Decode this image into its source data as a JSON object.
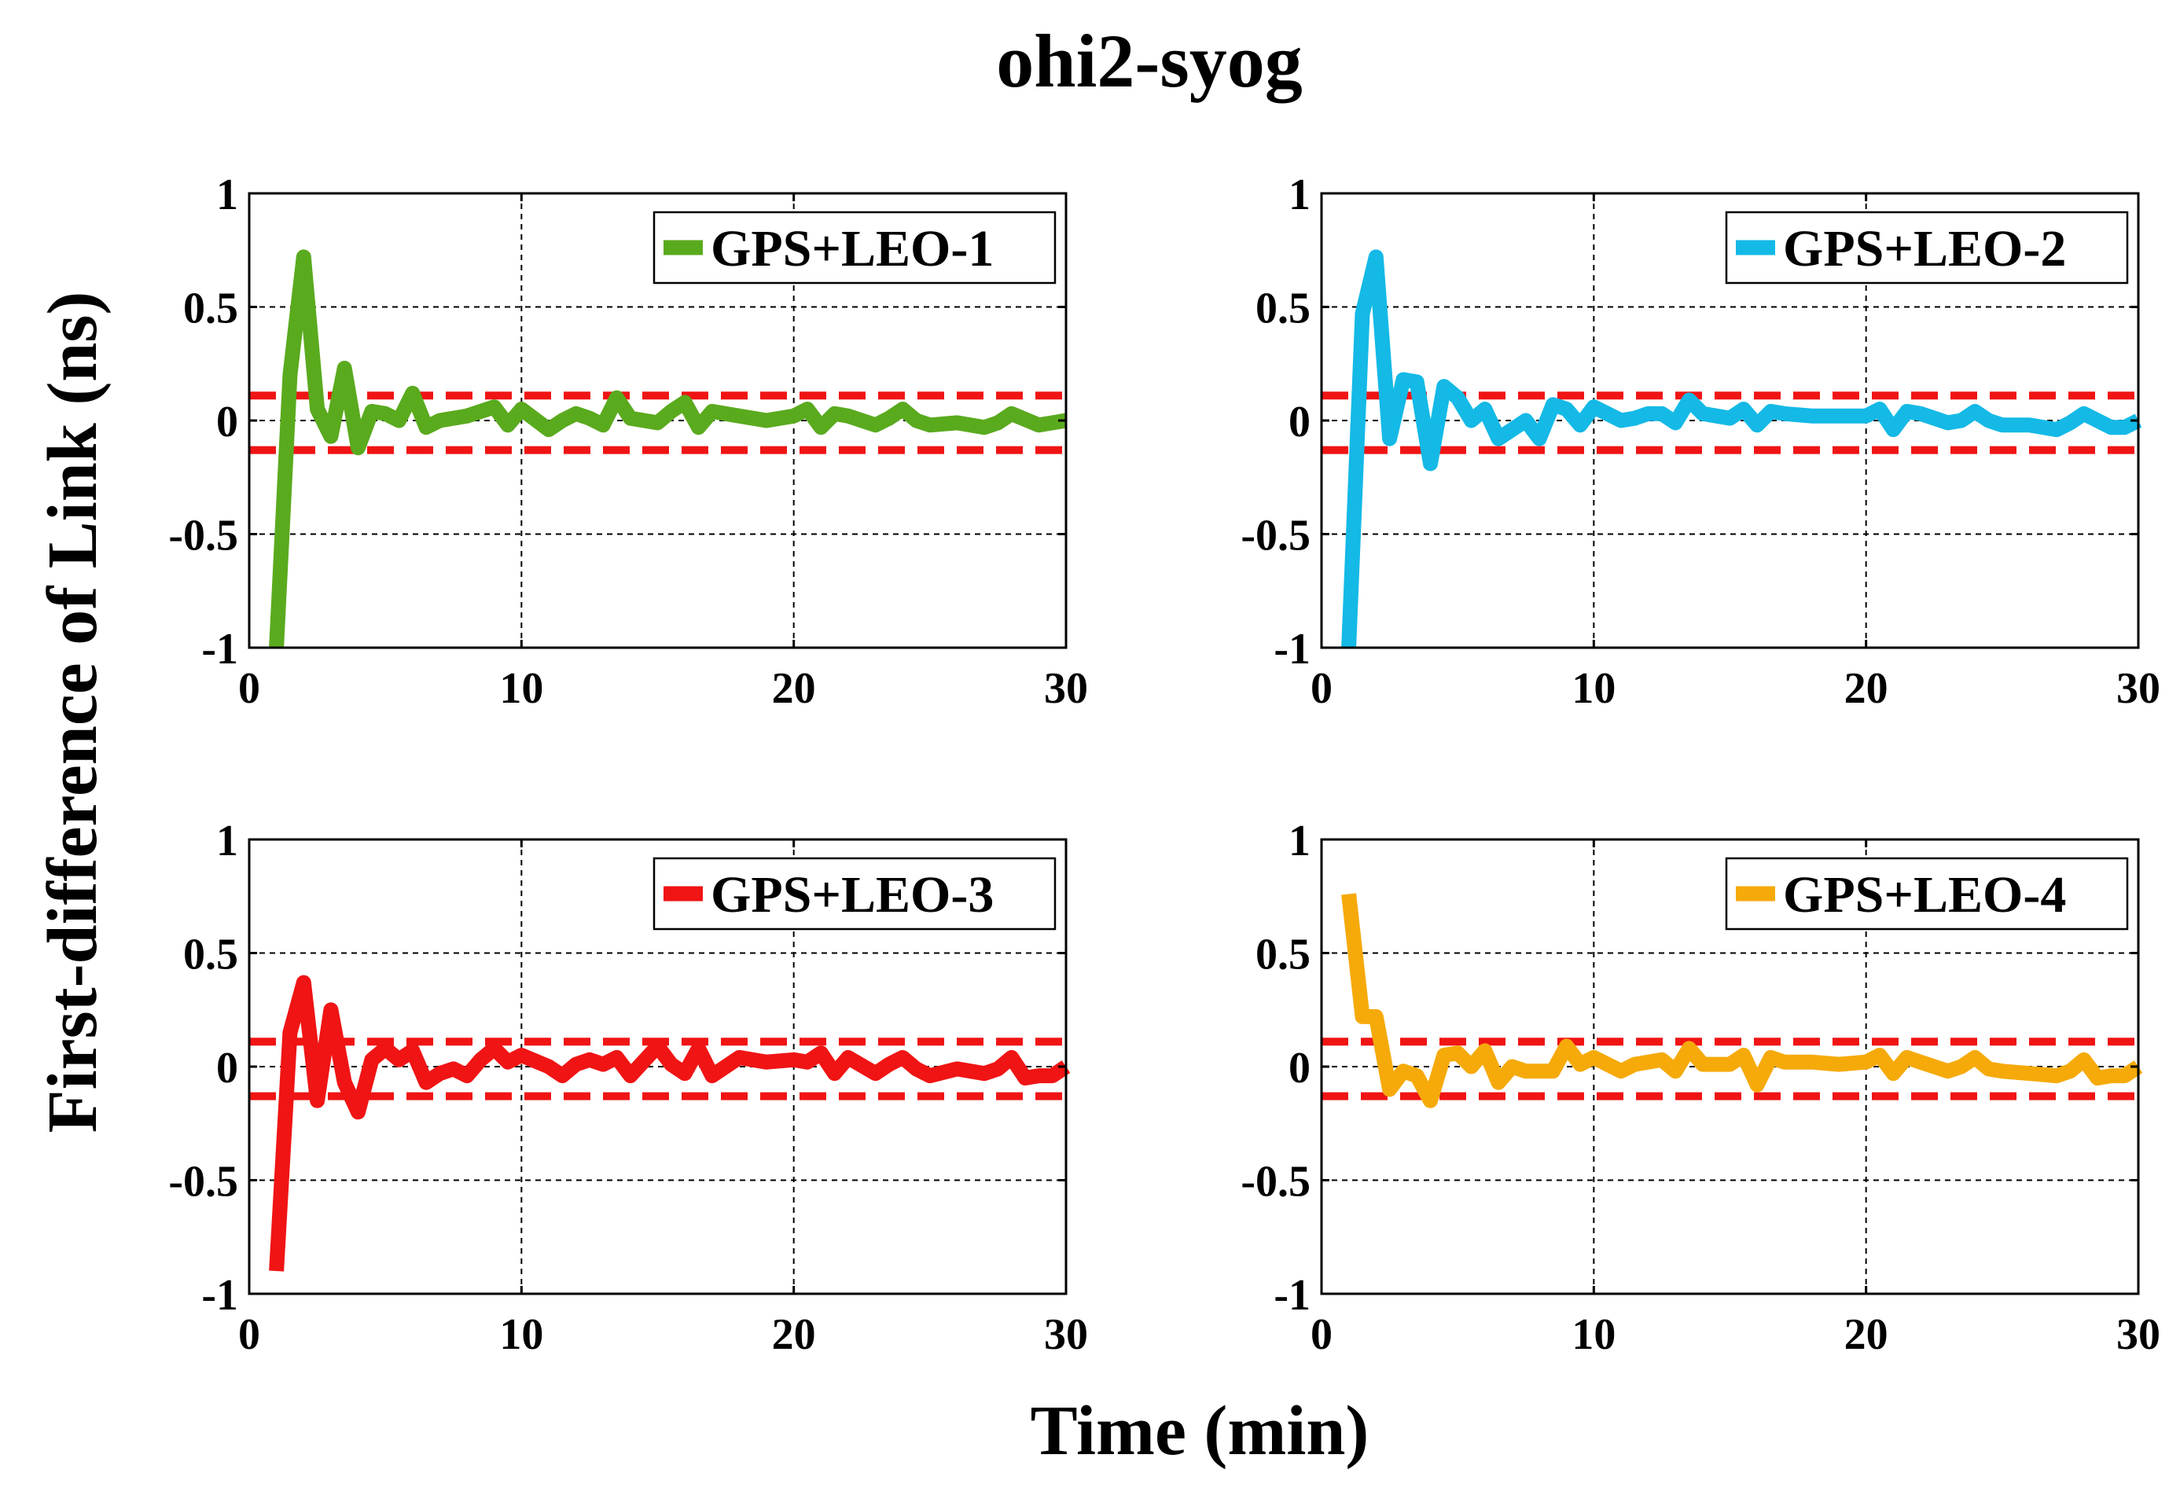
{
  "figure": {
    "title": "ohi2-syog",
    "xlabel": "Time (min)",
    "ylabel": "First-difference of Link (ns)"
  },
  "chart_data": [
    {
      "type": "line",
      "title": "",
      "xlabel": "Time (min)",
      "ylabel": "First-difference of Link (ns)",
      "xlim": [
        0,
        30
      ],
      "ylim": [
        -1,
        1
      ],
      "xticks": [
        "0",
        "10",
        "20",
        "30"
      ],
      "yticks": [
        "-1",
        "-0.5",
        "0",
        "0.5",
        "1"
      ],
      "grid": true,
      "legend_position": "top-right",
      "series": [
        {
          "name": "GPS+LEO-1",
          "color": "#5aaa1e",
          "x": [
            1.0,
            1.5,
            2.0,
            2.5,
            3.0,
            3.5,
            4.0,
            4.5,
            5.0,
            5.5,
            6.0,
            6.5,
            7.0,
            8.0,
            9.0,
            9.5,
            10.0,
            11.0,
            11.5,
            12.0,
            12.5,
            13.0,
            13.5,
            14.0,
            15.0,
            15.5,
            16.0,
            16.5,
            17.0,
            18.0,
            19.0,
            20.0,
            20.5,
            21.0,
            21.5,
            22.0,
            23.0,
            23.5,
            24.0,
            24.5,
            25.0,
            26.0,
            27.0,
            27.5,
            28.0,
            29.0,
            29.5,
            30.0
          ],
          "values": [
            -1.0,
            0.2,
            0.72,
            0.05,
            -0.07,
            0.23,
            -0.12,
            0.04,
            0.03,
            0.0,
            0.12,
            -0.03,
            0.0,
            0.02,
            0.06,
            -0.02,
            0.05,
            -0.04,
            0.0,
            0.03,
            0.01,
            -0.02,
            0.1,
            0.01,
            -0.01,
            0.04,
            0.08,
            -0.03,
            0.04,
            0.02,
            0.0,
            0.02,
            0.05,
            -0.03,
            0.03,
            0.02,
            -0.02,
            0.01,
            0.05,
            0.0,
            -0.02,
            -0.01,
            -0.03,
            -0.01,
            0.03,
            -0.02,
            -0.01,
            0.0
          ]
        }
      ],
      "reference_lines": [
        0.11,
        -0.13
      ]
    },
    {
      "type": "line",
      "title": "",
      "xlabel": "Time (min)",
      "ylabel": "First-difference of Link (ns)",
      "xlim": [
        0,
        30
      ],
      "ylim": [
        -1,
        1
      ],
      "xticks": [
        "0",
        "10",
        "20",
        "30"
      ],
      "yticks": [
        "-1",
        "-0.5",
        "0",
        "0.5",
        "1"
      ],
      "grid": true,
      "legend_position": "top-right",
      "series": [
        {
          "name": "GPS+LEO-2",
          "color": "#14b9e6",
          "x": [
            1.0,
            1.5,
            2.0,
            2.5,
            3.0,
            3.5,
            4.0,
            4.5,
            5.0,
            5.5,
            6.0,
            6.5,
            7.0,
            7.5,
            8.0,
            8.5,
            9.0,
            9.5,
            10.0,
            11.0,
            11.5,
            12.0,
            12.5,
            13.0,
            13.5,
            14.0,
            15.0,
            15.5,
            16.0,
            16.5,
            17.0,
            18.0,
            19.0,
            20.0,
            20.5,
            21.0,
            21.5,
            22.0,
            23.0,
            23.5,
            24.0,
            24.5,
            25.0,
            26.0,
            27.0,
            27.5,
            28.0,
            29.0,
            29.5,
            30.0
          ],
          "values": [
            -1.0,
            0.47,
            0.72,
            -0.08,
            0.18,
            0.17,
            -0.19,
            0.15,
            0.1,
            0.0,
            0.05,
            -0.08,
            -0.04,
            0.0,
            -0.08,
            0.07,
            0.05,
            -0.02,
            0.06,
            0.0,
            0.01,
            0.03,
            0.03,
            -0.01,
            0.09,
            0.03,
            0.01,
            0.05,
            -0.02,
            0.04,
            0.03,
            0.02,
            0.02,
            0.02,
            0.05,
            -0.04,
            0.04,
            0.03,
            -0.01,
            0.0,
            0.04,
            0.0,
            -0.02,
            -0.02,
            -0.04,
            -0.01,
            0.03,
            -0.03,
            -0.03,
            0.0
          ]
        }
      ],
      "reference_lines": [
        0.11,
        -0.13
      ]
    },
    {
      "type": "line",
      "title": "",
      "xlabel": "Time (min)",
      "ylabel": "First-difference of Link (ns)",
      "xlim": [
        0,
        30
      ],
      "ylim": [
        -1,
        1
      ],
      "xticks": [
        "0",
        "10",
        "20",
        "30"
      ],
      "yticks": [
        "-1",
        "-0.5",
        "0",
        "0.5",
        "1"
      ],
      "grid": true,
      "legend_position": "top-right",
      "series": [
        {
          "name": "GPS+LEO-3",
          "color": "#f01414",
          "x": [
            1.0,
            1.5,
            2.0,
            2.5,
            3.0,
            3.5,
            4.0,
            4.5,
            5.0,
            5.5,
            6.0,
            6.5,
            7.0,
            7.5,
            8.0,
            8.5,
            9.0,
            9.5,
            10.0,
            11.0,
            11.5,
            12.0,
            12.5,
            13.0,
            13.5,
            14.0,
            15.0,
            15.5,
            16.0,
            16.5,
            17.0,
            18.0,
            19.0,
            20.0,
            20.5,
            21.0,
            21.5,
            22.0,
            23.0,
            23.5,
            24.0,
            24.5,
            25.0,
            26.0,
            27.0,
            27.5,
            28.0,
            28.5,
            29.0,
            29.5,
            30.0
          ],
          "values": [
            -0.9,
            0.15,
            0.37,
            -0.15,
            0.25,
            -0.07,
            -0.2,
            0.03,
            0.08,
            0.03,
            0.07,
            -0.07,
            -0.03,
            -0.01,
            -0.04,
            0.03,
            0.08,
            0.02,
            0.05,
            0.0,
            -0.04,
            0.01,
            0.03,
            0.01,
            0.04,
            -0.04,
            0.09,
            0.01,
            -0.03,
            0.08,
            -0.04,
            0.04,
            0.02,
            0.03,
            0.02,
            0.06,
            -0.03,
            0.04,
            -0.03,
            0.01,
            0.04,
            -0.01,
            -0.04,
            -0.01,
            -0.03,
            -0.01,
            0.04,
            -0.05,
            -0.04,
            -0.04,
            0.0
          ]
        }
      ],
      "reference_lines": [
        0.11,
        -0.13
      ]
    },
    {
      "type": "line",
      "title": "",
      "xlabel": "Time (min)",
      "ylabel": "First-difference of Link (ns)",
      "xlim": [
        0,
        30
      ],
      "ylim": [
        -1,
        1
      ],
      "xticks": [
        "0",
        "10",
        "20",
        "30"
      ],
      "yticks": [
        "-1",
        "-0.5",
        "0",
        "0.5",
        "1"
      ],
      "grid": true,
      "legend_position": "top-right",
      "series": [
        {
          "name": "GPS+LEO-4",
          "color": "#f5aa0a",
          "x": [
            1.0,
            1.5,
            2.0,
            2.5,
            3.0,
            3.5,
            4.0,
            4.5,
            5.0,
            5.5,
            6.0,
            6.5,
            7.0,
            7.5,
            8.0,
            8.5,
            9.0,
            9.5,
            10.0,
            11.0,
            11.5,
            12.0,
            12.5,
            13.0,
            13.5,
            14.0,
            15.0,
            15.5,
            16.0,
            16.5,
            17.0,
            18.0,
            19.0,
            20.0,
            20.5,
            21.0,
            21.5,
            22.0,
            23.0,
            23.5,
            24.0,
            24.5,
            25.0,
            26.0,
            27.0,
            27.5,
            28.0,
            28.5,
            29.0,
            29.5,
            30.0
          ],
          "values": [
            0.76,
            0.22,
            0.22,
            -0.1,
            -0.02,
            -0.04,
            -0.15,
            0.05,
            0.06,
            0.0,
            0.07,
            -0.07,
            0.0,
            -0.02,
            -0.02,
            -0.02,
            0.09,
            0.01,
            0.04,
            -0.02,
            0.01,
            0.02,
            0.03,
            -0.02,
            0.08,
            0.01,
            0.01,
            0.05,
            -0.08,
            0.04,
            0.02,
            0.02,
            0.01,
            0.02,
            0.05,
            -0.03,
            0.04,
            0.02,
            -0.02,
            0.0,
            0.04,
            -0.01,
            -0.02,
            -0.03,
            -0.04,
            -0.02,
            0.03,
            -0.05,
            -0.04,
            -0.04,
            0.0
          ]
        }
      ],
      "reference_lines": [
        0.11,
        -0.13
      ]
    }
  ]
}
